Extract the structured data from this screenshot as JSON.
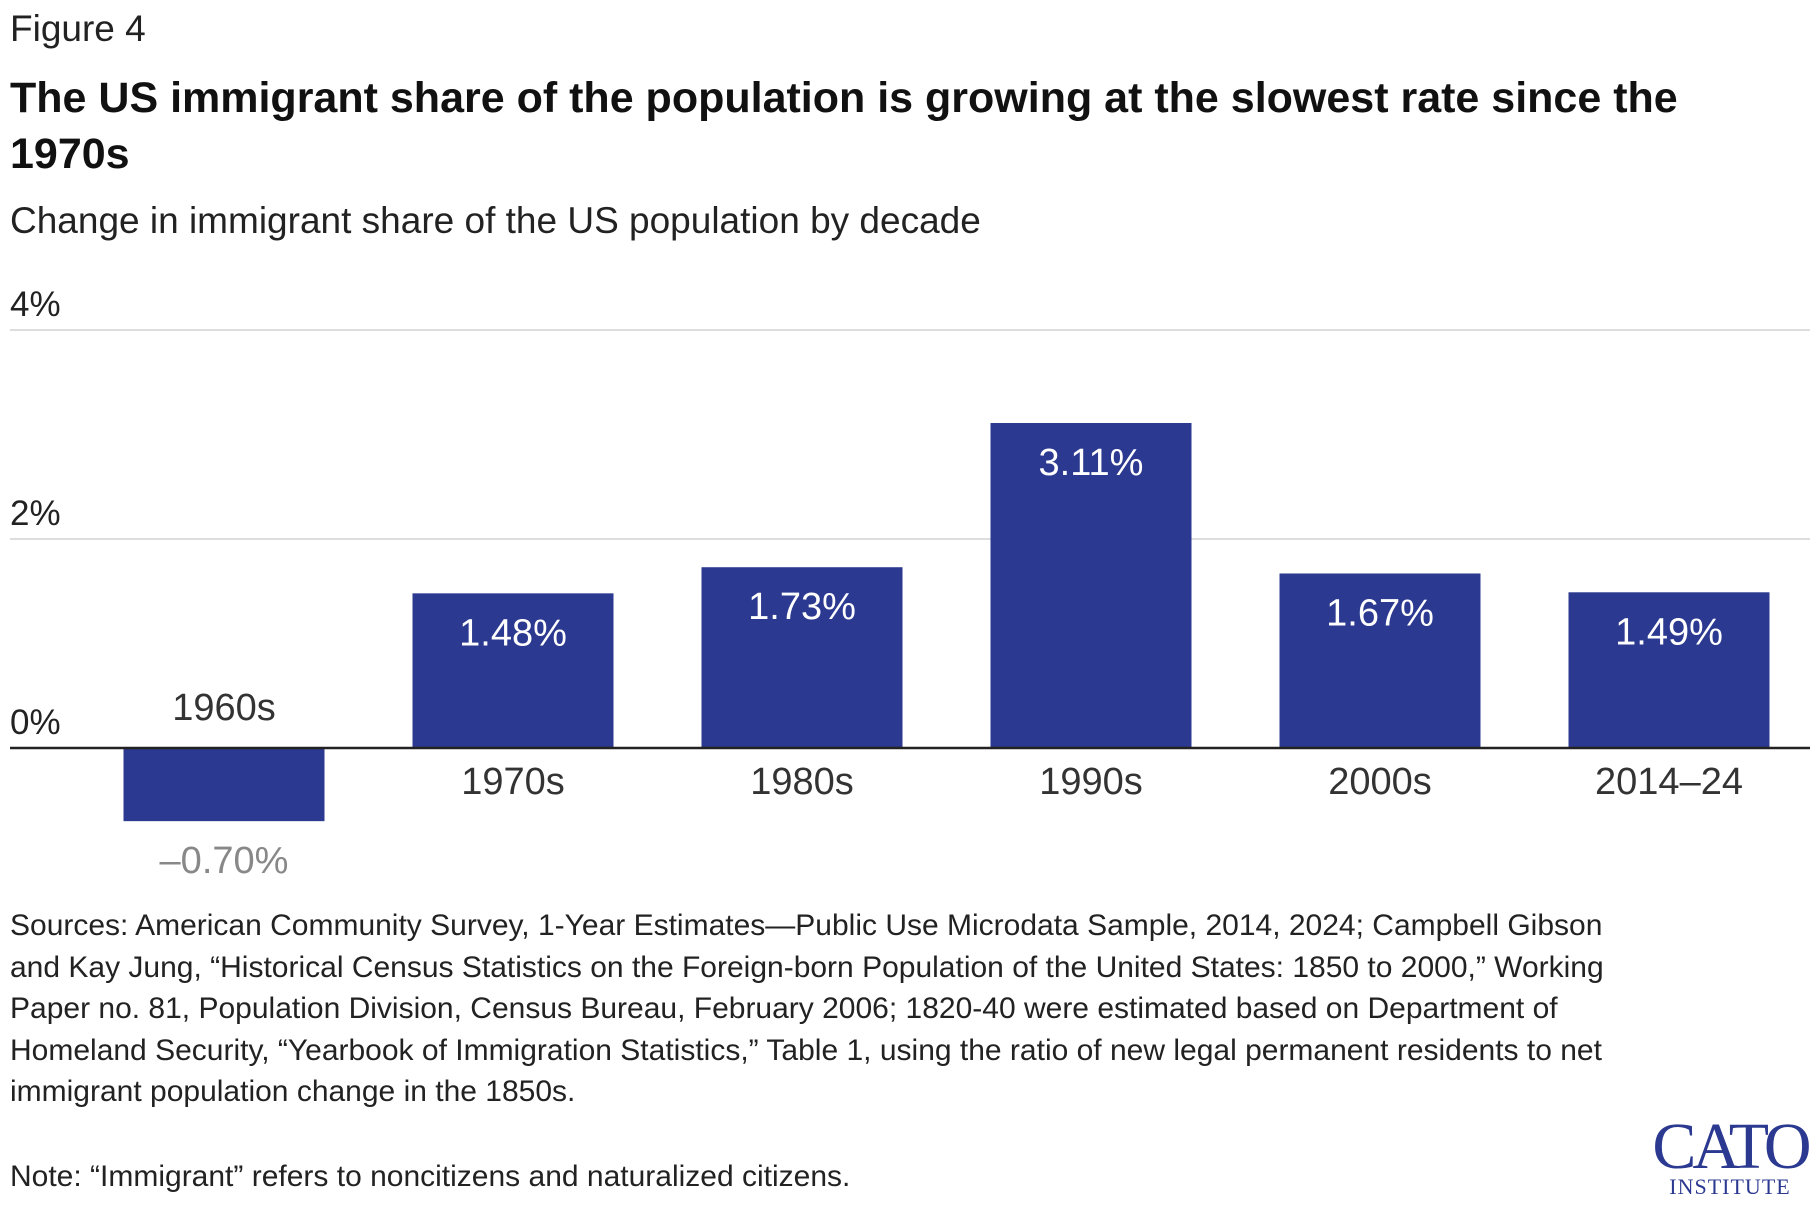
{
  "figure_label": "Figure 4",
  "title": "The US immigrant share of the population is growing at the slowest rate since the 1970s",
  "subtitle": "Change in immigrant share of the US population by decade",
  "sources": "Sources: American Community Survey, 1-Year Estimates—Public Use Microdata Sample, 2014, 2024; Campbell Gibson and Kay Jung, “Historical Census Statistics on the Foreign-born Population of the United States: 1850 to 2000,” Working Paper no. 81, Population Division, Census Bureau, February 2006; 1820-40 were estimated based on Department of Homeland Security, “Yearbook of Immigration Statistics,” Table 1, using the ratio of new legal permanent residents to net immigrant population change in the 1850s.",
  "note": "Note: “Immigrant” refers to noncitizens and naturalized citizens.",
  "logo": {
    "main": "CATO",
    "sub": "INSTITUTE"
  },
  "colors": {
    "bar": "#2b3990",
    "grid": "#dddddd",
    "axis": "#222222",
    "negative_label": "#888888"
  },
  "chart_data": {
    "type": "bar",
    "categories": [
      "1960s",
      "1970s",
      "1980s",
      "1990s",
      "2000s",
      "2014–24"
    ],
    "values": [
      -0.7,
      1.48,
      1.73,
      3.11,
      1.67,
      1.49
    ],
    "labels": [
      "–0.70%",
      "1.48%",
      "1.73%",
      "3.11%",
      "1.67%",
      "1.49%"
    ],
    "yticks": [
      0,
      2,
      4
    ],
    "ytick_labels": [
      "0%",
      "2%",
      "4%"
    ],
    "ylim": [
      -0.9,
      4
    ],
    "title": "Change in immigrant share of the US population by decade",
    "xlabel": "",
    "ylabel": ""
  }
}
